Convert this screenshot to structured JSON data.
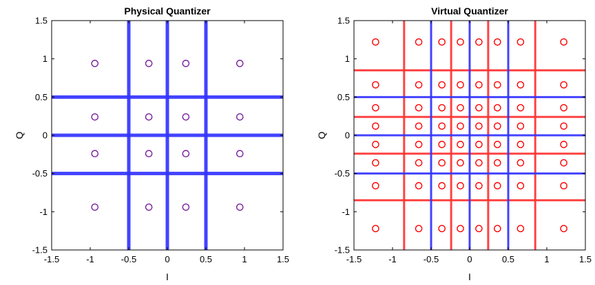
{
  "chart_data": [
    {
      "type": "scatter",
      "title": "Physical Quantizer",
      "xlabel": "I",
      "ylabel": "Q",
      "xlim": [
        -1.5,
        1.5
      ],
      "ylim": [
        -1.5,
        1.5
      ],
      "xticks": [
        "-1.5",
        "-1",
        "-0.5",
        "0",
        "0.5",
        "1",
        "1.5"
      ],
      "yticks": [
        "1.5",
        "1",
        "0.5",
        "0",
        "-0.5",
        "-1",
        "-1.5"
      ],
      "xtick_values": [
        -1.5,
        -1,
        -0.5,
        0,
        0.5,
        1,
        1.5
      ],
      "ytick_values": [
        1.5,
        1,
        0.5,
        0,
        -0.5,
        -1,
        -1.5
      ],
      "grid": false,
      "point_levels": [
        -0.94,
        -0.24,
        0.24,
        0.94
      ],
      "point_color": "#7a1f9e",
      "thresholds": [
        {
          "color": "#3333ff",
          "values": [
            -0.5,
            0,
            0.5
          ],
          "width": "thick"
        }
      ]
    },
    {
      "type": "scatter",
      "title": "Virtual Quantizer",
      "xlabel": "I",
      "ylabel": "Q",
      "xlim": [
        -1.5,
        1.5
      ],
      "ylim": [
        -1.5,
        1.5
      ],
      "xticks": [
        "-1.5",
        "-1",
        "-0.5",
        "0",
        "0.5",
        "1",
        "1.5"
      ],
      "yticks": [
        "1.5",
        "1",
        "0.5",
        "0",
        "-0.5",
        "-1",
        "-1.5"
      ],
      "xtick_values": [
        -1.5,
        -1,
        -0.5,
        0,
        0.5,
        1,
        1.5
      ],
      "ytick_values": [
        1.5,
        1,
        0.5,
        0,
        -0.5,
        -1,
        -1.5
      ],
      "grid": false,
      "point_levels": [
        -1.22,
        -0.66,
        -0.36,
        -0.12,
        0.12,
        0.36,
        0.66,
        1.22
      ],
      "point_color": "#ff0000",
      "thresholds": [
        {
          "color": "#ff3333",
          "values": [
            -0.85,
            -0.24,
            0.24,
            0.85
          ],
          "width": "medium"
        },
        {
          "color": "#3333ff",
          "values": [
            -0.5,
            0,
            0.5
          ],
          "width": "medium"
        }
      ]
    }
  ]
}
